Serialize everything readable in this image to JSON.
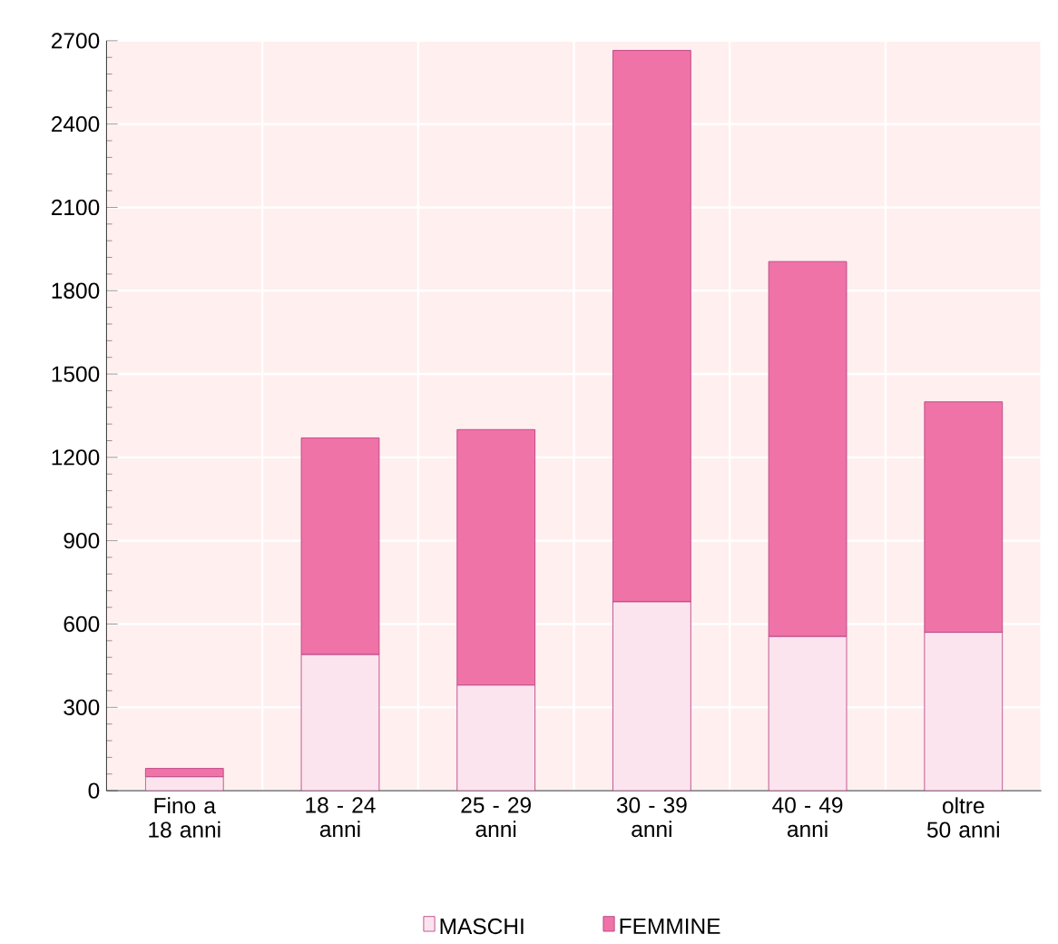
{
  "chart_data": {
    "type": "bar",
    "stacked": true,
    "categories": [
      "Fino a 18 anni",
      "18 - 24 anni",
      "25 - 29 anni",
      "30 - 39 anni",
      "40 - 49 anni",
      "oltre 50 anni"
    ],
    "series": [
      {
        "name": "MASCHI",
        "color": "#fce4ef",
        "values": [
          50,
          490,
          380,
          680,
          555,
          570
        ]
      },
      {
        "name": "FEMMINE",
        "color": "#f073a8",
        "values": [
          30,
          780,
          920,
          1985,
          1350,
          830
        ]
      }
    ],
    "ylim": [
      0,
      2700
    ],
    "yticks": [
      0,
      300,
      600,
      900,
      1200,
      1500,
      1800,
      2100,
      2400,
      2700
    ],
    "grid": true,
    "legend": "bottom"
  }
}
